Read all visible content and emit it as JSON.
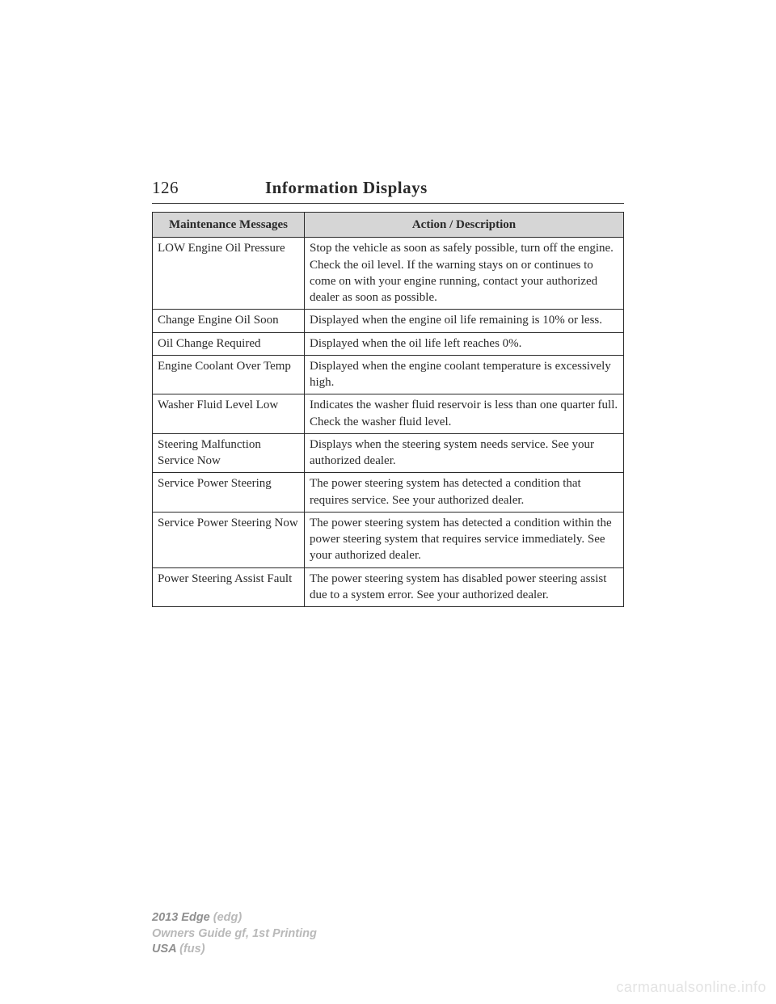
{
  "page_number": "126",
  "page_title": "Information Displays",
  "table": {
    "headers": {
      "col1": "Maintenance Messages",
      "col2": "Action / Description"
    },
    "rows": [
      {
        "msg": "LOW Engine Oil Pressure",
        "desc": "Stop the vehicle as soon as safely possible, turn off the engine. Check the oil level. If the warning stays on or continues to come on with your engine running, contact your authorized dealer as soon as possible."
      },
      {
        "msg": "Change Engine Oil Soon",
        "desc": "Displayed when the engine oil life remaining is 10% or less."
      },
      {
        "msg": "Oil Change Required",
        "desc": "Displayed when the oil life left reaches 0%."
      },
      {
        "msg": "Engine Coolant Over Temp",
        "desc": "Displayed when the engine coolant temperature is excessively high."
      },
      {
        "msg": "Washer Fluid Level Low",
        "desc": "Indicates the washer fluid reservoir is less than one quarter full. Check the washer fluid level."
      },
      {
        "msg": "Steering Malfunction Service Now",
        "desc": "Displays when the steering system needs service. See your authorized dealer."
      },
      {
        "msg": "Service Power Steering",
        "desc": "The power steering system has detected a condition that requires service. See your authorized dealer."
      },
      {
        "msg": "Service Power Steering Now",
        "desc": "The power steering system has detected a condition within the power steering system that requires service immediately. See your authorized dealer."
      },
      {
        "msg": "Power Steering Assist Fault",
        "desc": "The power steering system has disabled power steering assist due to a system error. See your authorized dealer."
      }
    ]
  },
  "footer": {
    "line1_model": "2013 Edge",
    "line1_paren": "(edg)",
    "line2": "Owners Guide gf, 1st Printing",
    "line3_model": "USA",
    "line3_paren": "(fus)"
  },
  "watermark": "carmanualsonline.info"
}
